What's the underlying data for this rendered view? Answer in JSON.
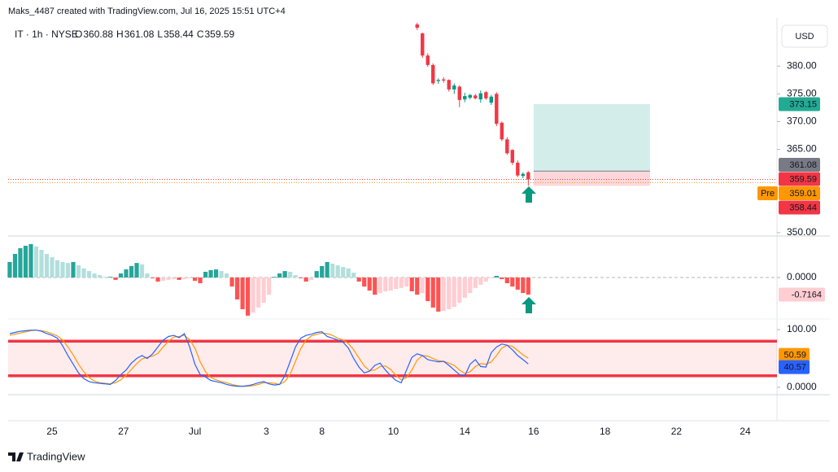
{
  "footer": "TradingView",
  "chart_data": [
    {
      "type": "candlestick",
      "subtitle": "Maks_4487 created with TradingView.com, Jul 16, 2025 15:51 UTC+4",
      "title": "IT · 1h · NYSE",
      "currency": "USD",
      "legend_labels": [
        "O",
        "H",
        "L",
        "C"
      ],
      "up_color": "#089981",
      "down_color": "#f23645",
      "xlim": [
        -0.3,
        145
      ],
      "ylim": [
        349.4,
        387.8
      ],
      "yticks": [
        {
          "value": 350,
          "label": "350.00"
        },
        {
          "value": 365,
          "label": "365.00"
        },
        {
          "value": 370,
          "label": "370.00"
        },
        {
          "value": 375,
          "label": "375.00"
        },
        {
          "value": 380,
          "label": "380.00"
        }
      ],
      "x": [
        77,
        78,
        79,
        80,
        81,
        82,
        83,
        84,
        85,
        86,
        87,
        88,
        89,
        90,
        91,
        92,
        93,
        94,
        95,
        96,
        97,
        98
      ],
      "open": [
        387.5,
        385.9,
        381.9,
        380.2,
        377.3,
        377.6,
        377.5,
        375.8,
        376.3,
        374.0,
        374.3,
        374.7,
        374.0,
        375.3,
        373.4,
        375.0,
        369.8,
        366.8,
        364.9,
        362.6,
        360.2,
        360.88
      ],
      "high": [
        387.8,
        386.0,
        382.3,
        380.5,
        377.8,
        378.0,
        377.6,
        376.9,
        376.5,
        375.2,
        375.0,
        375.0,
        375.6,
        375.5,
        374.8,
        375.3,
        370.0,
        367.2,
        365.0,
        363.0,
        360.9,
        361.08
      ],
      "low": [
        386.5,
        381.5,
        379.9,
        376.6,
        376.8,
        377.0,
        375.4,
        375.0,
        372.6,
        373.5,
        374.0,
        374.0,
        373.4,
        373.9,
        373.0,
        369.2,
        366.5,
        364.0,
        362.2,
        360.0,
        359.8,
        358.44
      ],
      "close": [
        386.9,
        381.9,
        380.2,
        376.9,
        377.5,
        377.4,
        375.8,
        376.5,
        373.9,
        374.6,
        374.8,
        374.2,
        375.1,
        374.2,
        374.5,
        369.6,
        366.8,
        364.3,
        362.6,
        360.3,
        360.6,
        359.59
      ],
      "premarket": {
        "label": "Pre",
        "value": 359.01,
        "color": "#ff9800"
      },
      "position": {
        "x": [
          99,
          121
        ],
        "target": 373.15,
        "entry": 361.08,
        "stop": 358.44,
        "target_color": "#22ab94",
        "entry_color": "#787b86",
        "stop_color": "#f23645"
      }
    },
    {
      "type": "histogram",
      "colors": [
        "#26a69a",
        "#b2dfdb",
        "#ffcdd2",
        "#ff5252"
      ],
      "xlim": [
        -0.3,
        145
      ],
      "ylim": [
        -1.74,
        1.74
      ],
      "yticks": [
        {
          "value": 0,
          "label": "0.0000"
        }
      ],
      "x": [
        0,
        1,
        2,
        3,
        4,
        5,
        6,
        7,
        8,
        9,
        10,
        11,
        12,
        13,
        14,
        15,
        16,
        17,
        18,
        19,
        20,
        21,
        22,
        23,
        24,
        25,
        26,
        27,
        28,
        29,
        30,
        31,
        32,
        33,
        34,
        35,
        36,
        37,
        38,
        39,
        40,
        41,
        42,
        43,
        44,
        45,
        46,
        47,
        48,
        49,
        50,
        51,
        52,
        53,
        54,
        55,
        56,
        57,
        58,
        59,
        60,
        61,
        62,
        63,
        64,
        65,
        66,
        67,
        68,
        69,
        70,
        71,
        72,
        73,
        74,
        75,
        76,
        77,
        78,
        79,
        80,
        81,
        82,
        83,
        84,
        85,
        86,
        87,
        88,
        89,
        90,
        91,
        92,
        93,
        94,
        95,
        96,
        97,
        98
      ],
      "values": [
        0.65,
        0.99,
        1.23,
        1.33,
        1.4,
        1.3,
        1.16,
        0.99,
        0.85,
        0.72,
        0.65,
        0.61,
        0.65,
        0.51,
        0.38,
        0.27,
        0.17,
        0.1,
        0.03,
        0.03,
        -0.1,
        0.17,
        0.34,
        0.48,
        0.61,
        0.55,
        0.17,
        -0.03,
        -0.17,
        -0.14,
        -0.1,
        -0.07,
        -0.1,
        -0.07,
        -0.03,
        -0.14,
        -0.24,
        0.24,
        0.31,
        0.34,
        0.27,
        0.17,
        -0.38,
        -0.92,
        -1.33,
        -1.6,
        -1.47,
        -1.26,
        -1.06,
        -0.72,
        0.03,
        0.17,
        0.27,
        0.24,
        0.1,
        -0.03,
        -0.17,
        -0.1,
        0.27,
        0.48,
        0.65,
        0.58,
        0.51,
        0.44,
        0.38,
        0.2,
        -0.17,
        -0.38,
        -0.55,
        -0.72,
        -0.65,
        -0.58,
        -0.55,
        -0.48,
        -0.44,
        -0.38,
        -0.58,
        -0.72,
        -0.65,
        -0.99,
        -1.26,
        -1.43,
        -1.4,
        -1.33,
        -1.23,
        -1.06,
        -0.85,
        -0.65,
        -0.44,
        -0.31,
        -0.17,
        -0.03,
        0.07,
        -0.07,
        -0.24,
        -0.38,
        -0.51,
        -0.65,
        -0.7164
      ]
    },
    {
      "type": "line",
      "xlim": [
        -0.3,
        145
      ],
      "ylim": [
        -12.7,
        118.3
      ],
      "yticks": [
        {
          "value": 0,
          "label": "0.0000"
        },
        {
          "value": 100,
          "label": "100.00"
        }
      ],
      "bands": [
        20,
        80
      ],
      "band_color": "#f23645",
      "xticks": [
        {
          "value": 8,
          "label": "25"
        },
        {
          "value": 21.5,
          "label": "27"
        },
        {
          "value": 35,
          "label": "Jul"
        },
        {
          "value": 48.5,
          "label": "3"
        },
        {
          "value": 59,
          "label": "8"
        },
        {
          "value": 72.5,
          "label": "10"
        },
        {
          "value": 86,
          "label": "14"
        },
        {
          "value": 99,
          "label": "16"
        },
        {
          "value": 112.5,
          "label": "18"
        },
        {
          "value": 126,
          "label": "22"
        },
        {
          "value": 139,
          "label": "24"
        }
      ],
      "x": [
        0,
        1,
        2,
        3,
        4,
        5,
        6,
        7,
        8,
        9,
        10,
        11,
        12,
        13,
        14,
        15,
        16,
        17,
        18,
        19,
        20,
        21,
        22,
        23,
        24,
        25,
        26,
        27,
        28,
        29,
        30,
        31,
        32,
        33,
        34,
        35,
        36,
        37,
        38,
        39,
        40,
        41,
        42,
        43,
        44,
        45,
        46,
        47,
        48,
        49,
        50,
        51,
        52,
        53,
        54,
        55,
        56,
        57,
        58,
        59,
        60,
        61,
        62,
        63,
        64,
        65,
        66,
        67,
        68,
        69,
        70,
        71,
        72,
        73,
        74,
        75,
        76,
        77,
        78,
        79,
        80,
        81,
        82,
        83,
        84,
        85,
        86,
        87,
        88,
        89,
        90,
        91,
        92,
        93,
        94,
        95,
        96,
        97,
        98
      ],
      "series": [
        {
          "color": "#ff9800",
          "values": [
            90,
            92,
            94,
            96,
            98,
            99,
            98,
            96,
            93,
            89,
            82,
            70,
            56,
            40,
            27,
            17,
            11,
            8,
            7,
            6,
            8,
            13,
            21,
            31,
            41,
            49,
            52,
            54,
            59,
            70,
            80,
            87,
            88,
            90,
            83,
            68,
            44,
            27,
            17,
            13,
            10,
            8,
            5,
            3,
            2,
            2,
            3,
            5,
            8,
            8,
            7,
            5,
            10,
            23,
            45,
            67,
            82,
            89,
            92,
            94,
            93,
            90,
            85,
            82,
            76,
            65,
            51,
            37,
            29,
            30,
            36,
            37,
            31,
            21,
            13,
            17,
            30,
            47,
            55,
            54,
            50,
            46,
            45,
            42,
            38,
            30,
            24,
            27,
            36,
            41,
            40,
            44,
            55,
            68,
            73,
            71,
            64,
            56,
            50.59
          ]
        },
        {
          "color": "#2962ff",
          "values": [
            93,
            95,
            97,
            98,
            99,
            99,
            97,
            93,
            90,
            85,
            72,
            55,
            40,
            25,
            15,
            10,
            8,
            7,
            6,
            5,
            12,
            22,
            30,
            42,
            50,
            55,
            50,
            58,
            70,
            82,
            88,
            90,
            86,
            93,
            70,
            40,
            22,
            18,
            12,
            10,
            8,
            5,
            3,
            2,
            2,
            3,
            5,
            8,
            10,
            6,
            4,
            5,
            20,
            45,
            70,
            85,
            90,
            92,
            95,
            96,
            88,
            85,
            82,
            78,
            68,
            50,
            35,
            25,
            28,
            38,
            42,
            30,
            20,
            12,
            8,
            30,
            52,
            58,
            55,
            48,
            46,
            44,
            45,
            38,
            30,
            22,
            20,
            40,
            48,
            36,
            35,
            60,
            70,
            75,
            73,
            65,
            55,
            48,
            40.57
          ]
        }
      ]
    }
  ]
}
